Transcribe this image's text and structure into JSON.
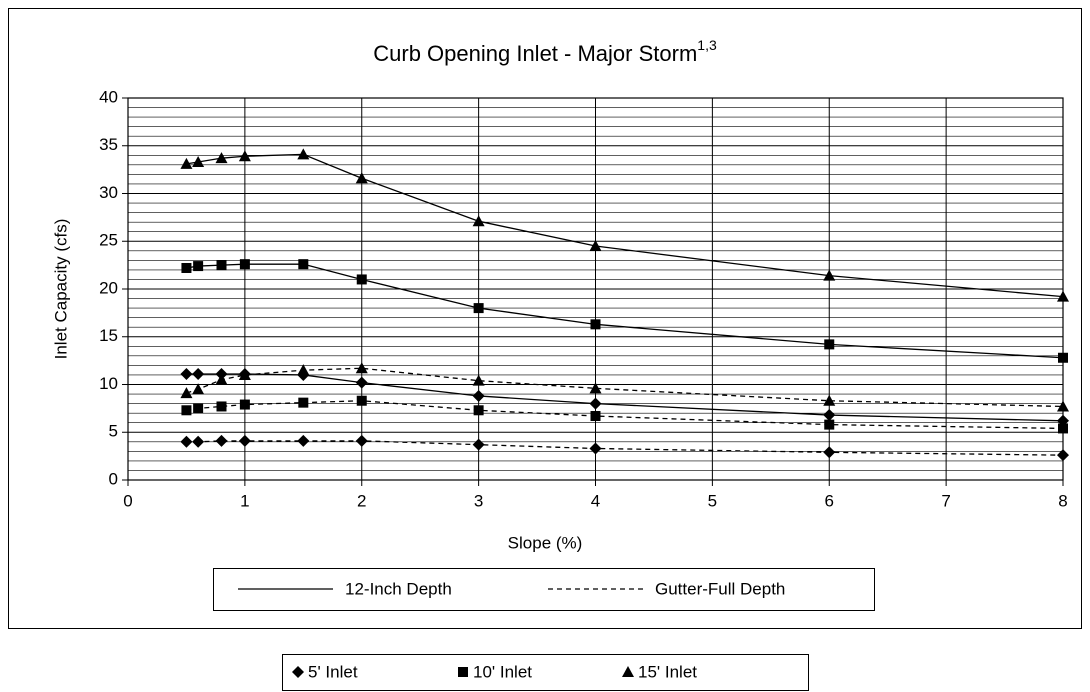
{
  "chart_data": {
    "type": "line",
    "title": "Curb Opening Inlet - Major Storm",
    "title_superscript": "1,3",
    "x_label": "Slope (%)",
    "y_label": "Inlet Capacity (cfs)",
    "x": [
      0.5,
      0.6,
      0.8,
      1,
      1.5,
      2,
      3,
      4,
      6,
      8
    ],
    "xlim": [
      0,
      8
    ],
    "xticks": [
      0,
      1,
      2,
      3,
      4,
      5,
      6,
      7,
      8
    ],
    "ylim": [
      0,
      40
    ],
    "yticks": [
      0,
      5,
      10,
      15,
      20,
      25,
      30,
      35,
      40
    ],
    "minor_grid_step": 1,
    "grid": true,
    "color": "#000000",
    "line_styles": [
      {
        "name": "12-Inch Depth",
        "dash": "solid"
      },
      {
        "name": "Gutter-Full Depth",
        "dash": "dashed"
      }
    ],
    "markers": [
      {
        "name": "5' Inlet",
        "symbol": "diamond"
      },
      {
        "name": "10' Inlet",
        "symbol": "square"
      },
      {
        "name": "15' Inlet",
        "symbol": "triangle"
      }
    ],
    "series": [
      {
        "marker": 2,
        "style": 0,
        "values": [
          33.1,
          33.3,
          33.7,
          33.9,
          34.1,
          31.6,
          27.1,
          24.5,
          21.4,
          19.2
        ]
      },
      {
        "marker": 1,
        "style": 0,
        "values": [
          22.2,
          22.4,
          22.5,
          22.6,
          22.6,
          21.0,
          18.0,
          16.3,
          14.2,
          12.8
        ]
      },
      {
        "marker": 0,
        "style": 0,
        "values": [
          11.1,
          11.1,
          11.1,
          11.1,
          11.0,
          10.2,
          8.8,
          8.0,
          6.8,
          6.2
        ]
      },
      {
        "marker": 2,
        "style": 1,
        "values": [
          9.1,
          9.5,
          10.5,
          11.0,
          11.5,
          11.7,
          10.4,
          9.6,
          8.3,
          7.7
        ]
      },
      {
        "marker": 1,
        "style": 1,
        "values": [
          7.3,
          7.5,
          7.7,
          7.9,
          8.1,
          8.3,
          7.3,
          6.7,
          5.8,
          5.4
        ]
      },
      {
        "marker": 0,
        "style": 1,
        "values": [
          4.0,
          4.0,
          4.1,
          4.1,
          4.1,
          4.1,
          3.7,
          3.3,
          2.9,
          2.6
        ]
      }
    ]
  }
}
